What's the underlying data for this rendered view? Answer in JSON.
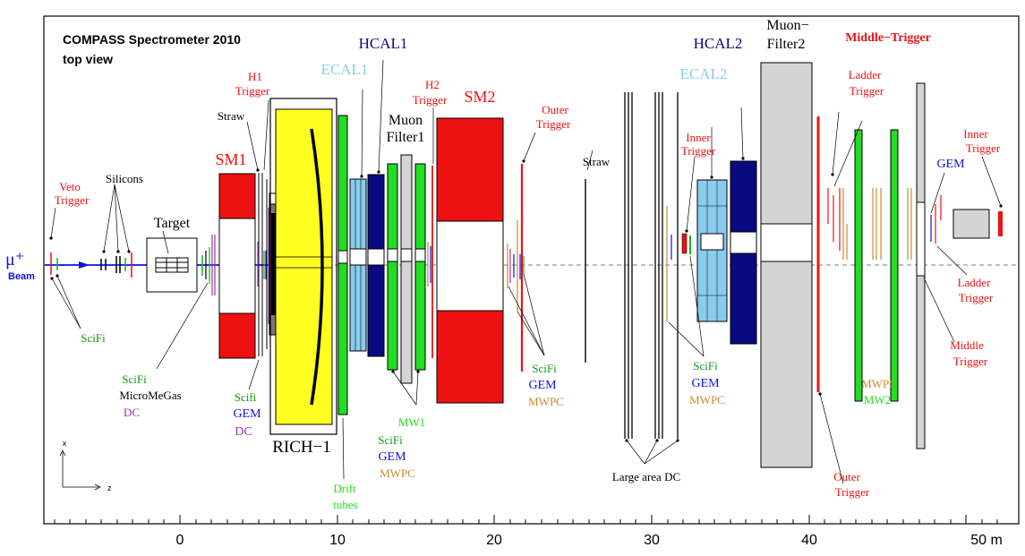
{
  "title_line1": "COMPASS Spectrometer 2010",
  "title_line2": "top view",
  "beam": {
    "symbol": "μ⁺",
    "label": "Beam"
  },
  "axes": {
    "x": "x",
    "z": "z"
  },
  "ticks": [
    "0",
    "10",
    "20",
    "30",
    "40",
    "50 m"
  ],
  "labels": {
    "veto_trigger_1": "Veto",
    "veto_trigger_2": "Trigger",
    "silicons": "Silicons",
    "target": "Target",
    "scifi_1": "SciFi",
    "scifi_2": "SciFi",
    "micromegas": "MicroMeGas",
    "dc": "DC",
    "sm1": "SM1",
    "straw_1": "Straw",
    "h1_trigger_1": "H1",
    "h1_trigger_2": "Trigger",
    "scifi_3": "Scifi",
    "gem_1": "GEM",
    "dc_2": "DC",
    "rich1": "RICH−1",
    "ecal1": "ECAL1",
    "hcal1": "HCAL1",
    "muon_filter1_1": "Muon",
    "muon_filter1_2": "Filter1",
    "h2_trigger_1": "H2",
    "h2_trigger_2": "Trigger",
    "sm2": "SM2",
    "drift_1": "Drift",
    "drift_2": "tubes",
    "mw1": "MW1",
    "scifi_4": "SciFi",
    "gem_2": "GEM",
    "mwpc_1": "MWPC",
    "outer_trigger_1": "Outer",
    "outer_trigger_2": "Trigger",
    "straw_2": "Straw",
    "scifi_5": "SciFi",
    "gem_3": "GEM",
    "mwpc_2": "MWPC",
    "large_area_dc": "Large area DC",
    "inner_trigger_1": "Inner",
    "inner_trigger_2": "Trigger",
    "ecal2": "ECAL2",
    "scifi_6": "SciFi",
    "gem_4": "GEM",
    "mwpc_3": "MWPC",
    "hcal2": "HCAL2",
    "muon_filter2_1": "Muon−",
    "muon_filter2_2": "Filter2",
    "middle_trigger_top": "Middle−Trigger",
    "ladder_trigger_1": "Ladder",
    "ladder_trigger_2": "Trigger",
    "mwpc_4": "MWPC",
    "mw2": "MW2",
    "outer_trigger_3": "Outer",
    "outer_trigger_4": "Trigger",
    "gem_5": "GEM",
    "inner_trigger_3": "Inner",
    "inner_trigger_4": "Trigger",
    "ladder_trigger_3": "Ladder",
    "ladder_trigger_4": "Trigger",
    "middle_trigger_1": "Middle",
    "middle_trigger_2": "Trigger"
  },
  "colors": {
    "red": "#ee1111",
    "green": "#22dd22",
    "lightblue": "#88ccee",
    "navy": "#0a0a80",
    "yellow": "#ffff22",
    "grey": "#d4d4d4",
    "purple": "#9933aa",
    "orange": "#cc8833",
    "blue": "#1111dd",
    "labelgreen": "#119911"
  }
}
